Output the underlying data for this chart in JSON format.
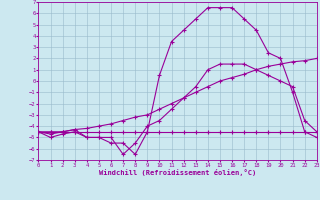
{
  "xlabel": "Windchill (Refroidissement éolien,°C)",
  "bg_color": "#cce8f0",
  "line_color": "#990099",
  "grid_color": "#99bbcc",
  "x": [
    0,
    1,
    2,
    3,
    4,
    5,
    6,
    7,
    8,
    9,
    10,
    11,
    12,
    13,
    14,
    15,
    16,
    17,
    18,
    19,
    20,
    21,
    22,
    23
  ],
  "line_peak": [
    -4.5,
    -5.0,
    -4.7,
    -4.5,
    -5.0,
    -5.0,
    -5.5,
    -5.5,
    -6.5,
    -4.5,
    0.5,
    3.5,
    4.5,
    5.5,
    6.5,
    6.5,
    6.5,
    5.5,
    4.5,
    2.5,
    2.0,
    -1.0,
    -4.5,
    -5.0
  ],
  "line_mid": [
    -4.5,
    -4.7,
    -4.5,
    -4.3,
    -5.0,
    -5.0,
    -5.0,
    -6.5,
    -5.5,
    -4.0,
    -3.5,
    -2.5,
    -1.5,
    -0.5,
    1.0,
    1.5,
    1.5,
    1.5,
    1.0,
    0.5,
    0.0,
    -0.5,
    -3.5,
    -4.5
  ],
  "line_slow": [
    -4.5,
    -4.5,
    -4.5,
    -4.3,
    -4.2,
    -4.0,
    -3.8,
    -3.5,
    -3.2,
    -3.0,
    -2.5,
    -2.0,
    -1.5,
    -1.0,
    -0.5,
    0.0,
    0.3,
    0.6,
    1.0,
    1.3,
    1.5,
    1.7,
    1.8,
    2.0
  ],
  "line_flat": [
    -4.5,
    -4.5,
    -4.5,
    -4.5,
    -4.5,
    -4.5,
    -4.5,
    -4.5,
    -4.5,
    -4.5,
    -4.5,
    -4.5,
    -4.5,
    -4.5,
    -4.5,
    -4.5,
    -4.5,
    -4.5,
    -4.5,
    -4.5,
    -4.5,
    -4.5,
    -4.5,
    -4.5
  ],
  "ylim": [
    -7,
    7
  ],
  "xlim": [
    0,
    23
  ],
  "yticks": [
    -7,
    -6,
    -5,
    -4,
    -3,
    -2,
    -1,
    0,
    1,
    2,
    3,
    4,
    5,
    6,
    7
  ],
  "xticks": [
    0,
    1,
    2,
    3,
    4,
    5,
    6,
    7,
    8,
    9,
    10,
    11,
    12,
    13,
    14,
    15,
    16,
    17,
    18,
    19,
    20,
    21,
    22,
    23
  ]
}
